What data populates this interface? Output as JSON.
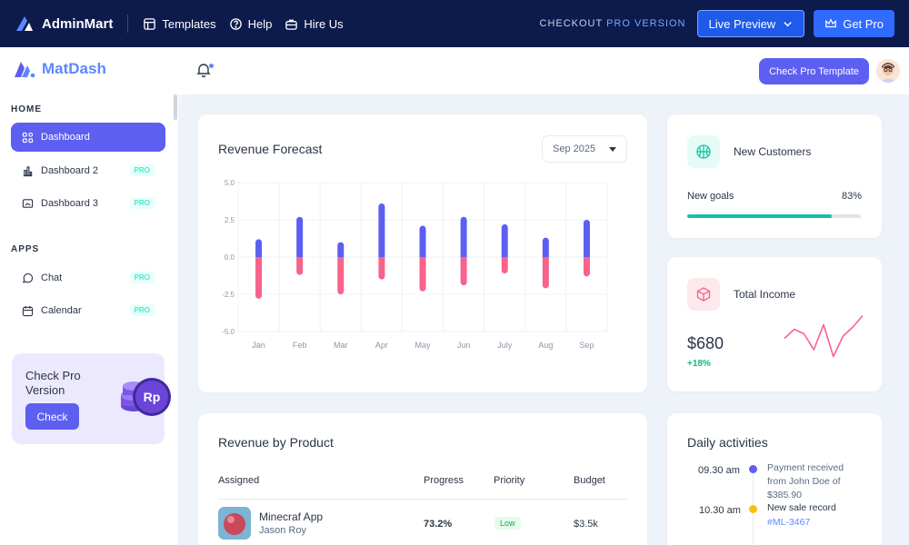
{
  "topbar": {
    "brand": "AdminMart",
    "links": [
      {
        "label": "Templates",
        "icon": "layout-icon"
      },
      {
        "label": "Help",
        "icon": "help-circle-icon"
      },
      {
        "label": "Hire Us",
        "icon": "briefcase-icon"
      }
    ],
    "checkout_prefix": "CHECKOUT",
    "checkout_highlight": "PRO VERSION",
    "live_preview": "Live Preview",
    "get_pro": "Get Pro"
  },
  "header": {
    "app_name": "MatDash",
    "check_pro_template": "Check Pro Template"
  },
  "sidebar": {
    "sections": [
      {
        "heading": "HOME",
        "items": [
          {
            "label": "Dashboard",
            "icon": "apps-icon",
            "active": true,
            "tag": ""
          },
          {
            "label": "Dashboard 2",
            "icon": "bar-chart-icon",
            "active": false,
            "tag": "PRO"
          },
          {
            "label": "Dashboard 3",
            "icon": "screen-icon",
            "active": false,
            "tag": "PRO"
          }
        ]
      },
      {
        "heading": "APPS",
        "items": [
          {
            "label": "Chat",
            "icon": "chat-icon",
            "active": false,
            "tag": "PRO"
          },
          {
            "label": "Calendar",
            "icon": "calendar-icon",
            "active": false,
            "tag": "PRO"
          }
        ]
      }
    ],
    "promo": {
      "title": "Check Pro Version",
      "button": "Check",
      "coin_label": "Rp"
    }
  },
  "revenue_forecast": {
    "title": "Revenue Forecast",
    "month": "Sep 2025"
  },
  "chart_data": {
    "type": "bar",
    "categories": [
      "Jan",
      "Feb",
      "Mar",
      "Apr",
      "May",
      "Jun",
      "July",
      "Aug",
      "Sep"
    ],
    "series": [
      {
        "values": [
          1.2,
          2.7,
          1.0,
          3.6,
          2.1,
          2.7,
          2.2,
          1.3,
          2.5
        ],
        "color": "#5d5ff0"
      },
      {
        "values": [
          -2.8,
          -1.2,
          -2.5,
          -1.5,
          -2.3,
          -1.9,
          -1.1,
          -2.1,
          -1.3
        ],
        "color": "#f7638d"
      }
    ],
    "yticks": [
      "5.0",
      "2.5",
      "0.0",
      "-2.5",
      "-5.0"
    ],
    "ylim": [
      -5,
      5
    ],
    "grid": true,
    "stacked": true
  },
  "new_customers": {
    "title": "New Customers",
    "goal_label": "New goals",
    "goal_pct_label": "83%",
    "goal_fraction": 0.83
  },
  "total_income": {
    "title": "Total Income",
    "value": "$680",
    "change": "+18%",
    "spark": [
      0.55,
      0.35,
      0.45,
      0.8,
      0.25,
      0.95,
      0.5,
      0.3,
      0.05
    ]
  },
  "revenue_by_product": {
    "title": "Revenue by Product",
    "headers": {
      "assigned": "Assigned",
      "progress": "Progress",
      "priority": "Priority",
      "budget": "Budget"
    },
    "rows": [
      {
        "product": "Minecraf App",
        "assignee": "Jason Roy",
        "progress": "73.2%",
        "priority": "Low",
        "budget": "$3.5k"
      }
    ]
  },
  "daily_activities": {
    "title": "Daily activities",
    "items": [
      {
        "time": "09.30 am",
        "text": "Payment received from John Doe of $385.90",
        "color": "#5d5ff0",
        "link": ""
      },
      {
        "time": "10.30 am",
        "text": "New sale record",
        "color": "#f8c10a",
        "link": "#ML-3467"
      }
    ]
  }
}
